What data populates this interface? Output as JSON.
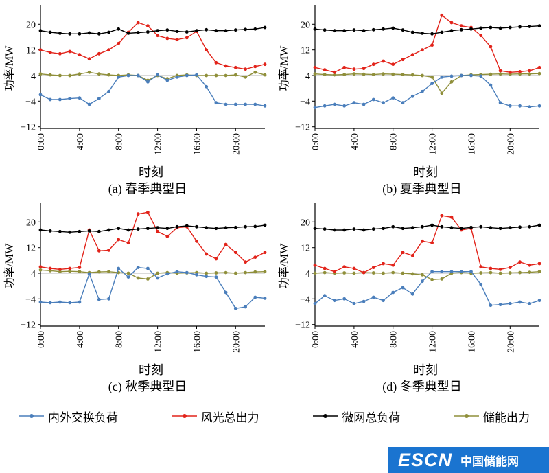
{
  "colors": {
    "exchange": "#4a7ebb",
    "renewable": "#e2231a",
    "total_load": "#000000",
    "storage": "#8f8f3a",
    "axis": "#000000",
    "gridline": "#b5b5b5"
  },
  "legend": {
    "items": [
      {
        "label": "内外交换负荷",
        "series": "exchange"
      },
      {
        "label": "风光总出力",
        "series": "renewable"
      },
      {
        "label": "微网总负荷",
        "series": "total_load"
      },
      {
        "label": "储能出力",
        "series": "storage"
      }
    ]
  },
  "watermark": {
    "text_main": "ESCN",
    "text_sub": "中国储能网",
    "bg": "#1a74d0"
  },
  "chart_data": [
    {
      "id": "a",
      "type": "line",
      "caption": "(a) 春季典型日",
      "xlabel": "时刻",
      "ylabel": "功率/MW",
      "x_hours": [
        0,
        1,
        2,
        3,
        4,
        5,
        6,
        7,
        8,
        9,
        10,
        11,
        12,
        13,
        14,
        15,
        16,
        17,
        18,
        19,
        20,
        21,
        22,
        23
      ],
      "xtick_hours": [
        0,
        4,
        8,
        12,
        16,
        20
      ],
      "xtick_labels": [
        "0:00",
        "4:00",
        "8:00",
        "12:00",
        "16:00",
        "20:00"
      ],
      "yticks": [
        -12,
        -4,
        4,
        12,
        20
      ],
      "ylim": [
        -12.5,
        25
      ],
      "refline_y": 4,
      "series": [
        {
          "name": "储能出力",
          "color_key": "storage",
          "values": [
            4.5,
            4.2,
            4.0,
            4.0,
            4.5,
            5.0,
            4.5,
            4.2,
            4.0,
            4.2,
            4.0,
            2.5,
            4.0,
            3.0,
            4.0,
            4.2,
            4.0,
            4.0,
            4.0,
            4.0,
            4.2,
            3.5,
            5.0,
            4.2
          ]
        },
        {
          "name": "内外交换负荷",
          "color_key": "exchange",
          "values": [
            -2.0,
            -3.5,
            -3.5,
            -3.2,
            -3.0,
            -5.0,
            -3.2,
            -1.0,
            3.5,
            4.0,
            4.0,
            2.0,
            4.2,
            2.5,
            3.5,
            4.0,
            4.2,
            0.5,
            -4.5,
            -5.0,
            -5.0,
            -5.0,
            -5.0,
            -5.5
          ]
        },
        {
          "name": "风光总出力",
          "color_key": "renewable",
          "values": [
            12.0,
            11.2,
            10.8,
            11.5,
            10.5,
            9.2,
            10.8,
            12.0,
            14.0,
            17.5,
            20.5,
            19.5,
            16.5,
            15.6,
            15.2,
            15.8,
            17.8,
            12.0,
            8.0,
            7.0,
            6.5,
            6.0,
            6.8,
            7.5
          ]
        },
        {
          "name": "微网总负荷",
          "color_key": "total_load",
          "values": [
            18.0,
            17.5,
            17.2,
            17.0,
            17.0,
            17.3,
            17.0,
            17.5,
            18.5,
            17.2,
            17.4,
            17.6,
            18.0,
            18.2,
            17.8,
            17.6,
            18.0,
            18.3,
            18.0,
            18.0,
            18.2,
            18.4,
            18.5,
            19.0
          ]
        }
      ]
    },
    {
      "id": "b",
      "type": "line",
      "caption": "(b) 夏季典型日",
      "xlabel": "时刻",
      "ylabel": "功率/MW",
      "x_hours": [
        0,
        1,
        2,
        3,
        4,
        5,
        6,
        7,
        8,
        9,
        10,
        11,
        12,
        13,
        14,
        15,
        16,
        17,
        18,
        19,
        20,
        21,
        22,
        23
      ],
      "xtick_hours": [
        0,
        4,
        8,
        12,
        16,
        20
      ],
      "xtick_labels": [
        "0:00",
        "4:00",
        "8:00",
        "12:00",
        "16:00",
        "20:00"
      ],
      "yticks": [
        -12,
        -4,
        4,
        12,
        20
      ],
      "ylim": [
        -12.5,
        25
      ],
      "refline_y": 4,
      "series": [
        {
          "name": "储能出力",
          "color_key": "storage",
          "values": [
            4.5,
            4.3,
            4.2,
            4.3,
            4.5,
            4.4,
            4.3,
            4.5,
            4.4,
            4.3,
            4.2,
            4.0,
            3.5,
            -1.5,
            2.0,
            4.0,
            4.2,
            4.3,
            4.4,
            4.5,
            4.4,
            4.5,
            4.5,
            4.6
          ]
        },
        {
          "name": "内外交换负荷",
          "color_key": "exchange",
          "values": [
            -6.0,
            -5.5,
            -5.0,
            -5.5,
            -4.5,
            -5.0,
            -3.5,
            -4.5,
            -3.0,
            -4.5,
            -2.5,
            -1.0,
            1.5,
            3.5,
            3.8,
            4.0,
            4.0,
            3.8,
            1.0,
            -4.5,
            -5.5,
            -5.5,
            -5.8,
            -5.5
          ]
        },
        {
          "name": "风光总出力",
          "color_key": "renewable",
          "values": [
            6.5,
            5.8,
            5.0,
            6.5,
            6.0,
            6.2,
            7.5,
            8.5,
            7.5,
            9.0,
            10.5,
            12.0,
            13.5,
            22.8,
            20.5,
            19.5,
            19.0,
            16.5,
            13.0,
            5.5,
            5.0,
            5.2,
            5.5,
            6.5
          ]
        },
        {
          "name": "微网总负荷",
          "color_key": "total_load",
          "values": [
            18.5,
            18.2,
            18.0,
            18.0,
            18.2,
            18.0,
            18.3,
            18.5,
            18.8,
            18.2,
            17.5,
            17.2,
            17.0,
            17.5,
            18.0,
            18.3,
            18.5,
            18.8,
            19.0,
            18.8,
            19.0,
            19.2,
            19.3,
            19.5
          ]
        }
      ]
    },
    {
      "id": "c",
      "type": "line",
      "caption": "(c) 秋季典型日",
      "xlabel": "时刻",
      "ylabel": "功率/MW",
      "x_hours": [
        0,
        1,
        2,
        3,
        4,
        5,
        6,
        7,
        8,
        9,
        10,
        11,
        12,
        13,
        14,
        15,
        16,
        17,
        18,
        19,
        20,
        21,
        22,
        23
      ],
      "xtick_hours": [
        0,
        4,
        8,
        12,
        16,
        20
      ],
      "xtick_labels": [
        "0:00",
        "4:00",
        "8:00",
        "12:00",
        "16:00",
        "20:00"
      ],
      "yticks": [
        -12,
        -4,
        4,
        12,
        20
      ],
      "ylim": [
        -12.5,
        25
      ],
      "refline_y": 4,
      "series": [
        {
          "name": "储能出力",
          "color_key": "storage",
          "values": [
            5.0,
            4.8,
            4.5,
            4.6,
            4.5,
            4.2,
            4.4,
            4.5,
            4.2,
            4.0,
            2.5,
            2.2,
            4.0,
            4.2,
            4.0,
            4.1,
            4.2,
            4.0,
            4.1,
            4.2,
            4.0,
            4.2,
            4.4,
            4.5
          ]
        },
        {
          "name": "内外交换负荷",
          "color_key": "exchange",
          "values": [
            -5.0,
            -5.2,
            -5.0,
            -5.2,
            -5.0,
            3.8,
            -4.2,
            -4.0,
            5.5,
            2.8,
            5.8,
            5.5,
            2.5,
            3.8,
            4.5,
            4.2,
            3.5,
            3.0,
            2.8,
            -2.0,
            -7.0,
            -6.5,
            -3.5,
            -3.8
          ]
        },
        {
          "name": "风光总出力",
          "color_key": "renewable",
          "values": [
            6.0,
            5.5,
            5.2,
            5.5,
            5.8,
            17.5,
            11.0,
            11.2,
            14.5,
            13.5,
            22.5,
            23.0,
            17.0,
            15.5,
            18.2,
            18.5,
            14.0,
            10.0,
            8.5,
            13.0,
            10.5,
            7.5,
            9.0,
            10.5
          ]
        },
        {
          "name": "微网总负荷",
          "color_key": "total_load",
          "values": [
            17.5,
            17.2,
            17.0,
            16.8,
            17.0,
            17.2,
            17.0,
            17.5,
            18.0,
            17.5,
            17.8,
            18.0,
            18.2,
            18.0,
            18.5,
            18.8,
            18.5,
            18.2,
            18.0,
            18.2,
            18.3,
            18.5,
            18.6,
            19.0
          ]
        }
      ]
    },
    {
      "id": "d",
      "type": "line",
      "caption": "(d) 冬季典型日",
      "xlabel": "时刻",
      "ylabel": "功率/MW",
      "x_hours": [
        0,
        1,
        2,
        3,
        4,
        5,
        6,
        7,
        8,
        9,
        10,
        11,
        12,
        13,
        14,
        15,
        16,
        17,
        18,
        19,
        20,
        21,
        22,
        23
      ],
      "xtick_hours": [
        0,
        4,
        8,
        12,
        16,
        20
      ],
      "xtick_labels": [
        "0:00",
        "4:00",
        "8:00",
        "12:00",
        "16:00",
        "20:00"
      ],
      "yticks": [
        -12,
        -4,
        4,
        12,
        20
      ],
      "ylim": [
        -12.5,
        25
      ],
      "refline_y": 4,
      "series": [
        {
          "name": "储能出力",
          "color_key": "storage",
          "values": [
            4.0,
            4.2,
            4.0,
            4.1,
            4.0,
            4.2,
            4.1,
            4.0,
            4.2,
            4.0,
            3.8,
            3.5,
            2.0,
            2.2,
            4.0,
            4.2,
            4.0,
            4.1,
            4.2,
            4.0,
            4.1,
            4.2,
            4.3,
            4.5
          ]
        },
        {
          "name": "内外交换负荷",
          "color_key": "exchange",
          "values": [
            -5.5,
            -3.0,
            -4.5,
            -4.0,
            -5.5,
            -4.8,
            -3.5,
            -4.5,
            -2.0,
            -0.5,
            -2.5,
            1.5,
            4.5,
            4.5,
            4.5,
            4.5,
            4.5,
            0.5,
            -6.0,
            -5.8,
            -5.5,
            -5.0,
            -5.5,
            -4.5
          ]
        },
        {
          "name": "风光总出力",
          "color_key": "renewable",
          "values": [
            6.5,
            5.5,
            4.5,
            6.0,
            5.5,
            4.2,
            5.8,
            7.0,
            6.5,
            10.5,
            9.5,
            14.0,
            13.5,
            22.0,
            21.5,
            17.5,
            18.0,
            6.0,
            5.5,
            5.2,
            5.8,
            7.5,
            6.5,
            7.0
          ]
        },
        {
          "name": "微网总负荷",
          "color_key": "total_load",
          "values": [
            18.0,
            17.8,
            17.5,
            17.5,
            17.8,
            17.5,
            17.8,
            18.0,
            18.5,
            18.0,
            18.2,
            18.5,
            19.0,
            18.5,
            18.2,
            18.0,
            18.3,
            18.5,
            18.2,
            18.0,
            18.2,
            18.4,
            18.5,
            19.0
          ]
        }
      ]
    }
  ]
}
